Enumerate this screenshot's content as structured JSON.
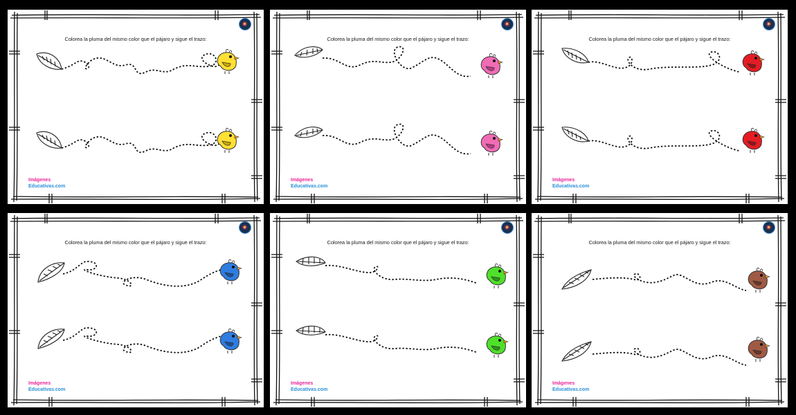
{
  "worksheet": {
    "instruction": "Colorea la pluma del mismo color que el pájaro y sigue el trazo:",
    "logo_line1": "Imágenes",
    "logo_line2": "Educativas.com"
  },
  "sheets": [
    {
      "bird_color": "#ffe033",
      "bird_dark": "#c8a800"
    },
    {
      "bird_color": "#f26bb5",
      "bird_dark": "#b83d85"
    },
    {
      "bird_color": "#e51c24",
      "bird_dark": "#9a0f14"
    },
    {
      "bird_color": "#2f7de0",
      "bird_dark": "#1b4f99"
    },
    {
      "bird_color": "#4fe02a",
      "bird_dark": "#2a9a14"
    },
    {
      "bird_color": "#a05a44",
      "bird_dark": "#6a3526"
    }
  ]
}
